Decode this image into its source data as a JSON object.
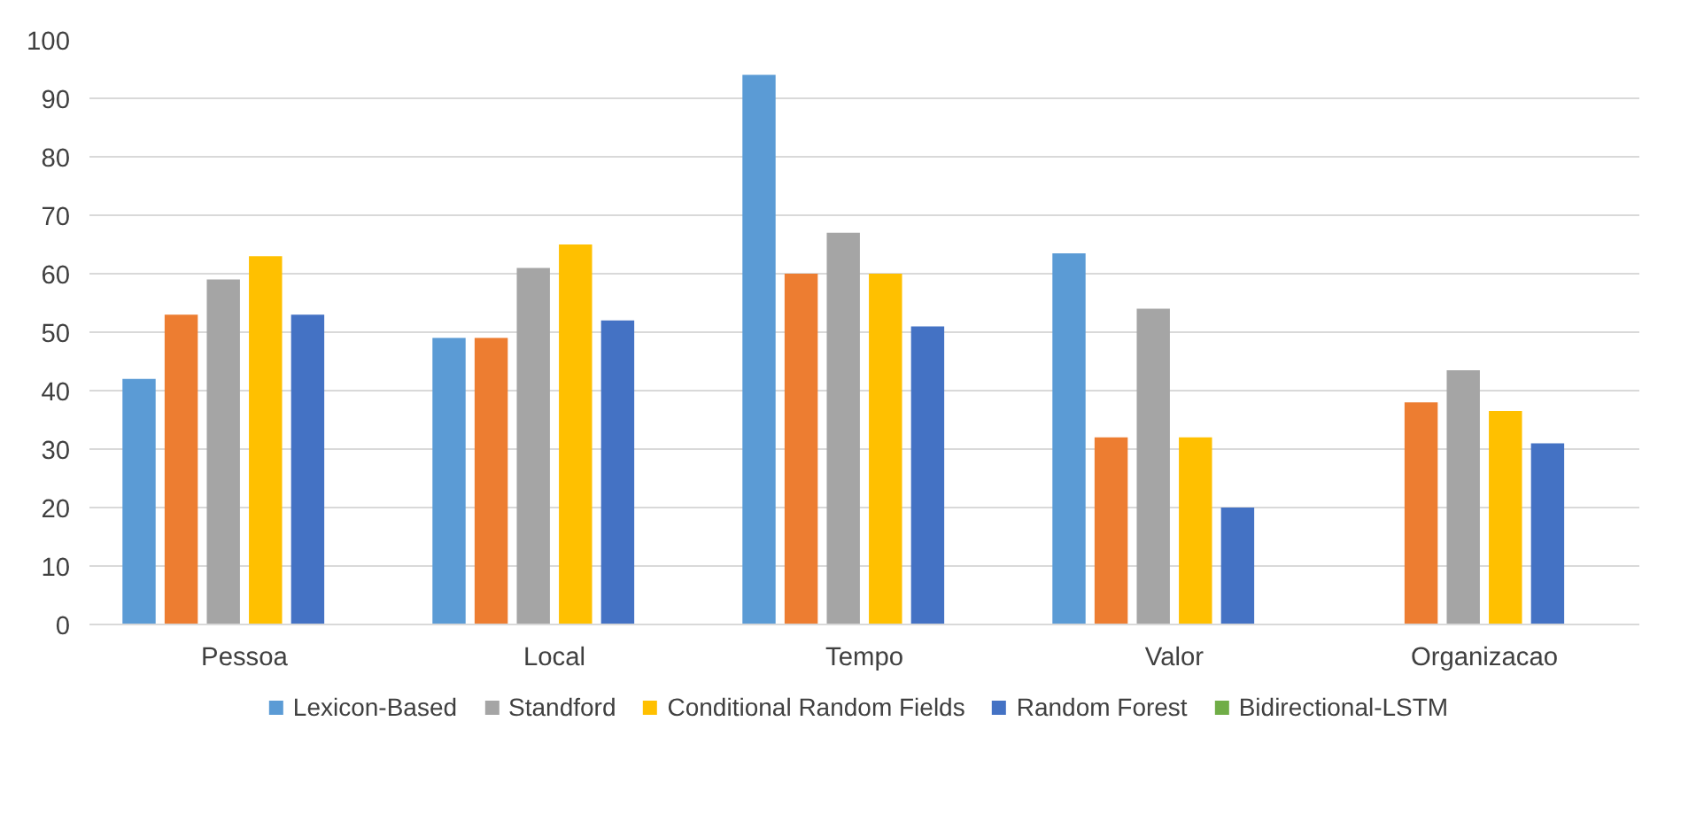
{
  "chart_data": {
    "type": "bar",
    "categories": [
      "Pessoa",
      "Local",
      "Tempo",
      "Valor",
      "Organizacao"
    ],
    "series": [
      {
        "name": "Lexicon-Based",
        "color": "#5b9bd5",
        "values": [
          42,
          49,
          94,
          63.5,
          null
        ]
      },
      {
        "color": "#ed7d31",
        "values": [
          53,
          49,
          60,
          32,
          38
        ]
      },
      {
        "name": "Standford",
        "color": "#a5a5a5",
        "values": [
          59,
          61,
          67,
          54,
          43.5
        ]
      },
      {
        "name": "Conditional Random Fields",
        "color": "#ffc000",
        "values": [
          63,
          65,
          60,
          32,
          36.5
        ]
      },
      {
        "name": "Random Forest",
        "color": "#4472c4",
        "values": [
          53,
          52,
          51,
          20,
          31
        ]
      },
      {
        "name": "Bidirectional-LSTM",
        "color": "#70ad47",
        "values": [
          null,
          null,
          null,
          null,
          null
        ]
      }
    ],
    "ylim": [
      0,
      100
    ],
    "yticks": [
      0,
      10,
      20,
      30,
      40,
      50,
      60,
      70,
      80,
      90,
      100
    ],
    "grid": "y",
    "legend": "bottom"
  }
}
